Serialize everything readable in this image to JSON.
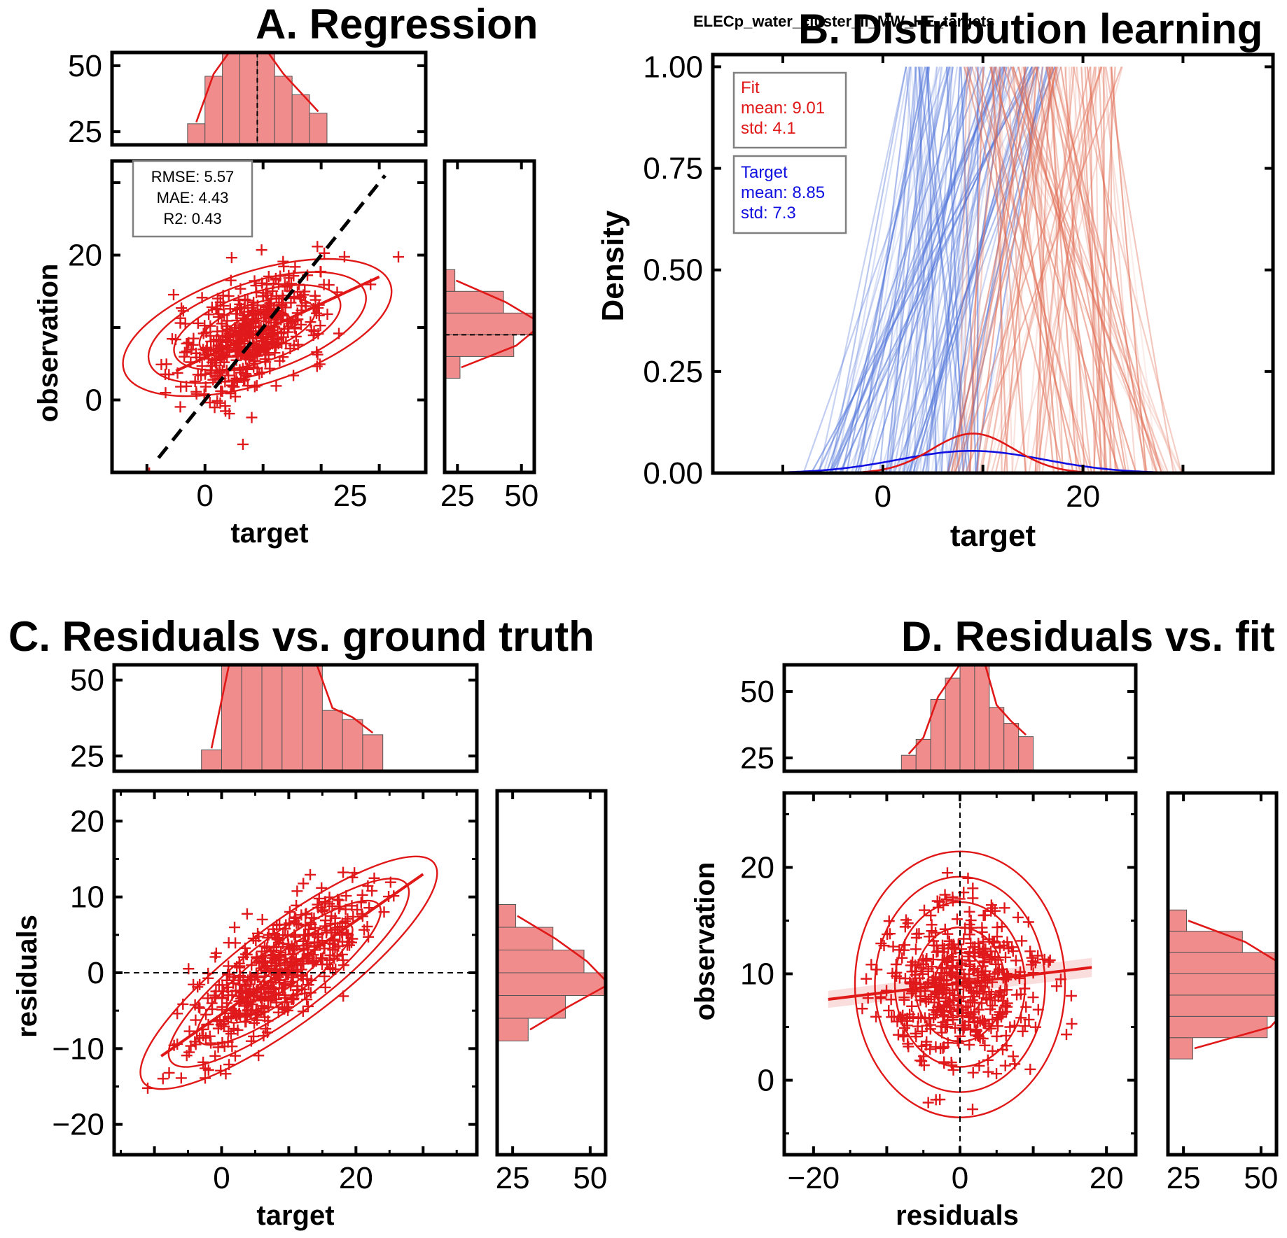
{
  "colors": {
    "scatter": "#e0191c",
    "hist_fill": "#f08c8c",
    "fit": "#e01818",
    "target": "#1010e0",
    "frame": "#000000"
  },
  "suptitle": "ELECp_water_cluster_li_MW_HE_targets",
  "panels": {
    "a": {
      "title": "A. Regression",
      "xlabel": "target",
      "ylabel": "observation",
      "stats": [
        "RMSE: 5.57",
        "MAE: 4.43",
        "R2: 0.43"
      ]
    },
    "b": {
      "title": "B. Distribution learning",
      "xlabel": "target",
      "ylabel": "Density",
      "fit": [
        "Fit",
        "mean: 9.01",
        "std: 4.1"
      ],
      "target": [
        "Target",
        "mean: 8.85",
        "std: 7.3"
      ]
    },
    "c": {
      "title": "C. Residuals vs. ground truth",
      "xlabel": "target",
      "ylabel": "residuals"
    },
    "d": {
      "title": "D. Residuals vs. fit",
      "xlabel": "residuals",
      "ylabel": "observation"
    }
  },
  "chart_data": [
    {
      "id": "A",
      "type": "scatter",
      "title": "A. Regression",
      "xlabel": "target",
      "ylabel": "observation",
      "xlim": [
        -16,
        38
      ],
      "ylim": [
        -10,
        33
      ],
      "xticks": [
        0,
        25
      ],
      "yticks": [
        0,
        20
      ],
      "points": "approx. 500 '+' markers; target mostly in [-5, 30], observation in [0, 25], cloud centered near (8, 9)",
      "regression_line": {
        "x": [
          -5,
          30
        ],
        "y": [
          4,
          17
        ]
      },
      "identity_line": {
        "x": [
          -8,
          31
        ],
        "y": [
          -8,
          31
        ]
      },
      "kde_contours": 5,
      "top_hist": {
        "ylim": [
          20,
          55
        ],
        "yticks": [
          25,
          50
        ],
        "mean_line_x": 9
      },
      "right_hist": {
        "xlim": [
          20,
          55
        ],
        "xticks": [
          25,
          50
        ],
        "mean_line_y": 9
      },
      "stats": [
        "RMSE: 5.57",
        "MAE: 4.43",
        "R2: 0.43"
      ]
    },
    {
      "id": "B",
      "type": "line",
      "title": "B. Distribution learning",
      "xlabel": "target",
      "ylabel": "Density",
      "xlim": [
        -17,
        39
      ],
      "ylim": [
        0,
        1.03
      ],
      "xticks": [
        0,
        20
      ],
      "yticks": [
        0.0,
        0.25,
        0.5,
        0.75,
        1.0
      ],
      "ytick_labels": [
        "0.00",
        "0.25",
        "0.50",
        "0.75",
        "1.00"
      ],
      "series": [
        {
          "name": "Fit",
          "mean": 9.01,
          "std": 4.1
        },
        {
          "name": "Target",
          "mean": 8.85,
          "std": 7.3
        }
      ]
    },
    {
      "id": "C",
      "type": "scatter",
      "title": "C. Residuals vs. ground truth",
      "xlabel": "target",
      "ylabel": "residuals",
      "xlim": [
        -16,
        38
      ],
      "ylim": [
        -24,
        24
      ],
      "xticks": [
        0,
        20
      ],
      "yticks": [
        -20,
        -10,
        0,
        10,
        20
      ],
      "points": "approx. 500 '+' markers along residual ≈ 0.78·target − 9; target in [-9, 30]",
      "regression_line": {
        "x": [
          -9,
          30
        ],
        "y": [
          -11,
          13
        ]
      },
      "zero_line_y": 0,
      "top_hist": {
        "ylim": [
          20,
          55
        ],
        "yticks": [
          25,
          50
        ]
      },
      "right_hist": {
        "xlim": [
          20,
          55
        ],
        "xticks": [
          25,
          50
        ]
      }
    },
    {
      "id": "D",
      "type": "scatter",
      "title": "D. Residuals vs. fit",
      "xlabel": "residuals",
      "ylabel": "observation",
      "xlim": [
        -24,
        24
      ],
      "ylim": [
        -7,
        27
      ],
      "xticks": [
        -20,
        0,
        20
      ],
      "yticks": [
        0,
        10,
        20
      ],
      "points": "approx. 500 '+' markers centered near (0, 9); residuals in [-18, 18]",
      "regression_line": {
        "x": [
          -18,
          18
        ],
        "y": [
          7.6,
          10.6
        ]
      },
      "zero_line_x": 0,
      "top_hist": {
        "ylim": [
          20,
          60
        ],
        "yticks": [
          25,
          50
        ]
      },
      "right_hist": {
        "xlim": [
          20,
          55
        ],
        "xticks": [
          25,
          50
        ]
      }
    }
  ]
}
